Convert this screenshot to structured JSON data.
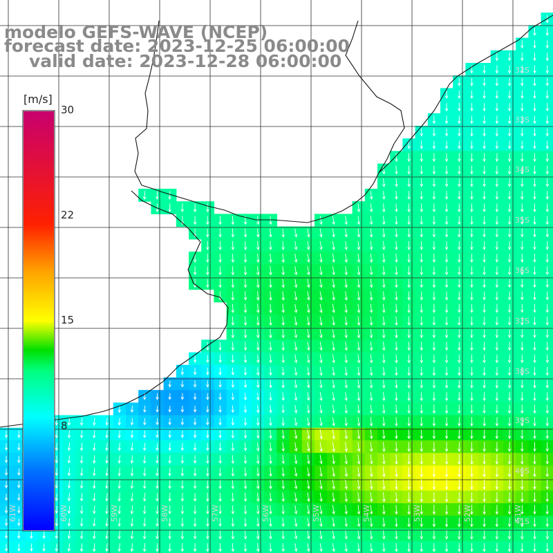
{
  "title": {
    "line1": "modelo GEFS-WAVE (NCEP)",
    "line2": "forecast date: 2023-12-25 06:00:00",
    "line3": "valid date: 2023-12-28 06:00:00"
  },
  "colorbar": {
    "unit": "[m/s]",
    "ticks": [
      "30",
      "22",
      "15",
      "8"
    ],
    "range": [
      0,
      30
    ],
    "colors": [
      "#0000ff",
      "#00a8ff",
      "#00ffff",
      "#00ff7f",
      "#00e000",
      "#a8f000",
      "#ffff00",
      "#ffa000",
      "#ff5000",
      "#ff0000",
      "#c8006e"
    ]
  },
  "grid": {
    "lat_labels": [
      "32S",
      "33S",
      "34S",
      "35S",
      "36S",
      "37S",
      "38S",
      "39S",
      "40S",
      "41S"
    ],
    "lon_labels": [
      "61W",
      "60W",
      "59W",
      "58W",
      "57W",
      "56W",
      "55W",
      "54W",
      "53W",
      "52W",
      "51W"
    ]
  },
  "colors": {
    "land": "#ffffff",
    "coast": "#111111",
    "gridline": "#333333",
    "arrow": "#ffffff",
    "title": "#8a8a8a"
  }
}
